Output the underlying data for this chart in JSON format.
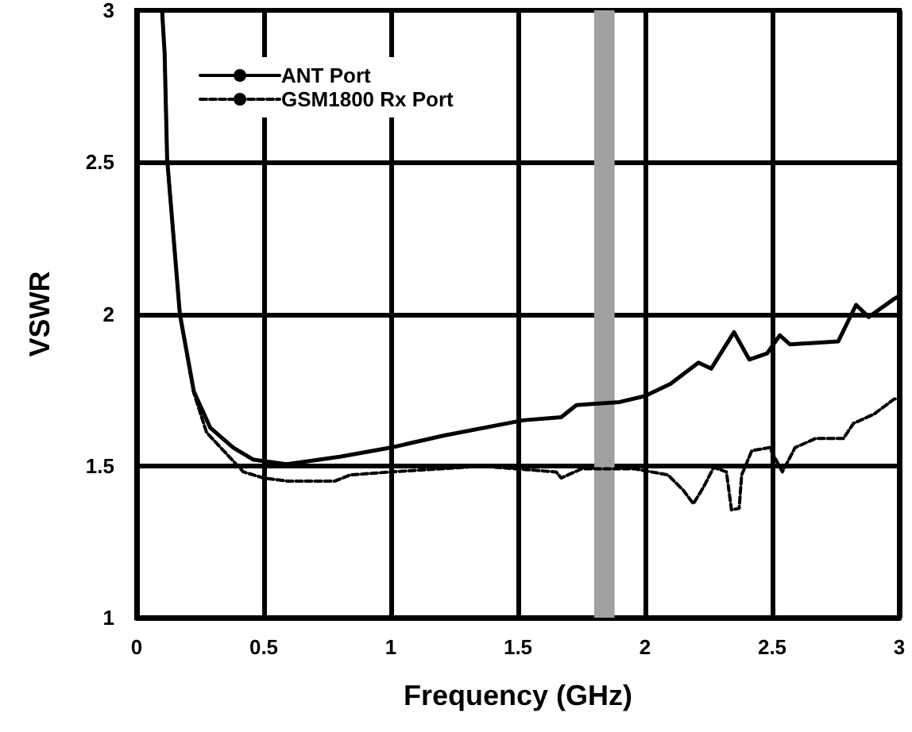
{
  "chart_data": {
    "type": "line",
    "xlabel": "Frequency (GHz)",
    "ylabel": "VSWR",
    "xlim": [
      0,
      3
    ],
    "xticks": [
      0,
      0.5,
      1,
      1.5,
      2,
      2.5,
      3
    ],
    "ylim": [
      1,
      3
    ],
    "yticks": [
      1,
      1.5,
      2,
      2.5,
      3
    ],
    "grid": true,
    "legend": "top left",
    "marker": "none",
    "bands": [
      {
        "axis": "x",
        "from": 1.8,
        "to": 1.88,
        "color": "#a0a0a0"
      }
    ],
    "series": [
      {
        "name": "ANT Port",
        "color": "#000000",
        "line_style": "solid",
        "x": [
          0.1,
          0.11,
          0.12,
          0.17,
          0.225,
          0.29,
          0.38,
          0.46,
          0.59,
          0.8,
          1.0,
          1.21,
          1.52,
          1.67,
          1.73,
          1.9,
          2.0,
          2.1,
          2.21,
          2.26,
          2.35,
          2.41,
          2.48,
          2.53,
          2.57,
          2.76,
          2.83,
          2.88,
          2.98,
          3.0
        ],
        "values": [
          3.0,
          2.86,
          2.51,
          2.0,
          1.745,
          1.625,
          1.56,
          1.52,
          1.505,
          1.53,
          1.56,
          1.6,
          1.65,
          1.66,
          1.7,
          1.71,
          1.73,
          1.77,
          1.84,
          1.82,
          1.94,
          1.85,
          1.87,
          1.93,
          1.9,
          1.91,
          2.03,
          1.99,
          2.05,
          2.06
        ]
      },
      {
        "name": "GSM1800 Rx Port",
        "color": "#000000",
        "line_style": "dashed",
        "x": [
          0.1,
          0.11,
          0.12,
          0.17,
          0.225,
          0.275,
          0.42,
          0.5,
          0.59,
          0.78,
          0.84,
          1.0,
          1.29,
          1.34,
          1.65,
          1.67,
          1.75,
          1.96,
          2.09,
          2.15,
          2.19,
          2.23,
          2.27,
          2.32,
          2.34,
          2.37,
          2.38,
          2.42,
          2.49,
          2.54,
          2.59,
          2.67,
          2.78,
          2.82,
          2.9,
          2.98,
          3.0
        ],
        "values": [
          3.0,
          2.86,
          2.51,
          2.0,
          1.74,
          1.61,
          1.48,
          1.46,
          1.45,
          1.45,
          1.47,
          1.48,
          1.495,
          1.5,
          1.48,
          1.46,
          1.49,
          1.49,
          1.47,
          1.42,
          1.375,
          1.43,
          1.495,
          1.48,
          1.355,
          1.36,
          1.47,
          1.55,
          1.56,
          1.48,
          1.56,
          1.59,
          1.59,
          1.64,
          1.67,
          1.72,
          1.72
        ]
      }
    ]
  }
}
